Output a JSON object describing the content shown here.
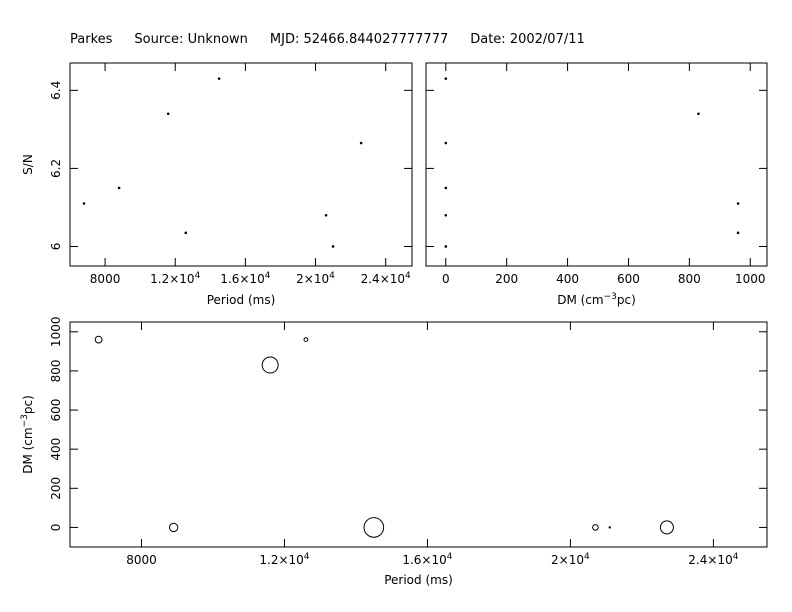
{
  "header": {
    "observatory": "Parkes",
    "source": "Source: Unknown",
    "mjd": "MJD: 52466.844027777777",
    "date": "Date: 2002/07/11"
  },
  "chart_data": [
    {
      "id": "snr-vs-period",
      "type": "scatter",
      "xlabel": "Period (ms)",
      "ylabel": "S/N",
      "xlim": [
        6000,
        25500
      ],
      "ylim": [
        5.95,
        6.47
      ],
      "xticks": [
        {
          "value": 8000,
          "label": "8000",
          "mantissa": "",
          "exp": ""
        },
        {
          "value": 12000,
          "label": "",
          "mantissa": "1.2×10",
          "exp": "4"
        },
        {
          "value": 16000,
          "label": "",
          "mantissa": "1.6×10",
          "exp": "4"
        },
        {
          "value": 20000,
          "label": "",
          "mantissa": "2×10",
          "exp": "4"
        },
        {
          "value": 24000,
          "label": "",
          "mantissa": "2.4×10",
          "exp": "4"
        }
      ],
      "yticks": [
        {
          "value": 6.0,
          "label": "6"
        },
        {
          "value": 6.2,
          "label": "6.2"
        },
        {
          "value": 6.4,
          "label": "6.4"
        }
      ],
      "points": [
        {
          "x": 6800,
          "y": 6.11
        },
        {
          "x": 8800,
          "y": 6.15
        },
        {
          "x": 11600,
          "y": 6.34
        },
        {
          "x": 12600,
          "y": 6.035
        },
        {
          "x": 14500,
          "y": 6.43
        },
        {
          "x": 20600,
          "y": 6.08
        },
        {
          "x": 21000,
          "y": 6.0
        },
        {
          "x": 22600,
          "y": 6.265
        }
      ]
    },
    {
      "id": "snr-vs-dm",
      "type": "scatter",
      "xlabel": "DM (cm",
      "xlabel_sup": "−3",
      "xlabel_tail": "pc)",
      "ylabel": "",
      "xlim": [
        -65,
        1055
      ],
      "ylim": [
        5.95,
        6.47
      ],
      "xticks": [
        {
          "value": 0,
          "label": "0"
        },
        {
          "value": 200,
          "label": "200"
        },
        {
          "value": 400,
          "label": "400"
        },
        {
          "value": 600,
          "label": "600"
        },
        {
          "value": 800,
          "label": "800"
        },
        {
          "value": 1000,
          "label": "1000"
        }
      ],
      "points": [
        {
          "x": 0,
          "y": 6.43
        },
        {
          "x": 0,
          "y": 6.265
        },
        {
          "x": 0,
          "y": 6.15
        },
        {
          "x": 0,
          "y": 6.08
        },
        {
          "x": 0,
          "y": 6.0
        },
        {
          "x": 830,
          "y": 6.34
        },
        {
          "x": 960,
          "y": 6.11
        },
        {
          "x": 960,
          "y": 6.035
        }
      ]
    },
    {
      "id": "dm-vs-period",
      "type": "scatter",
      "xlabel": "Period (ms)",
      "ylabel": "DM (cm",
      "ylabel_sup": "−3",
      "ylabel_tail": "pc)",
      "xlim": [
        6000,
        25500
      ],
      "ylim": [
        -100,
        1050
      ],
      "xticks": [
        {
          "value": 8000,
          "label": "8000",
          "mantissa": "",
          "exp": ""
        },
        {
          "value": 12000,
          "label": "",
          "mantissa": "1.2×10",
          "exp": "4"
        },
        {
          "value": 16000,
          "label": "",
          "mantissa": "1.6×10",
          "exp": "4"
        },
        {
          "value": 20000,
          "label": "",
          "mantissa": "2×10",
          "exp": "4"
        },
        {
          "value": 24000,
          "label": "",
          "mantissa": "2.4×10",
          "exp": "4"
        }
      ],
      "yticks": [
        {
          "value": 0,
          "label": "0"
        },
        {
          "value": 200,
          "label": "200"
        },
        {
          "value": 400,
          "label": "400"
        },
        {
          "value": 600,
          "label": "600"
        },
        {
          "value": 800,
          "label": "800"
        },
        {
          "value": 1000,
          "label": "1000"
        }
      ],
      "points": [
        {
          "x": 6800,
          "y": 960,
          "snr": 6.11
        },
        {
          "x": 8900,
          "y": 0,
          "snr": 6.15
        },
        {
          "x": 11600,
          "y": 830,
          "snr": 6.34
        },
        {
          "x": 12600,
          "y": 960,
          "snr": 6.035
        },
        {
          "x": 14500,
          "y": 0,
          "snr": 6.43
        },
        {
          "x": 20700,
          "y": 0,
          "snr": 6.08
        },
        {
          "x": 21100,
          "y": 0,
          "snr": 6.0
        },
        {
          "x": 22700,
          "y": 0,
          "snr": 6.265
        }
      ]
    }
  ]
}
